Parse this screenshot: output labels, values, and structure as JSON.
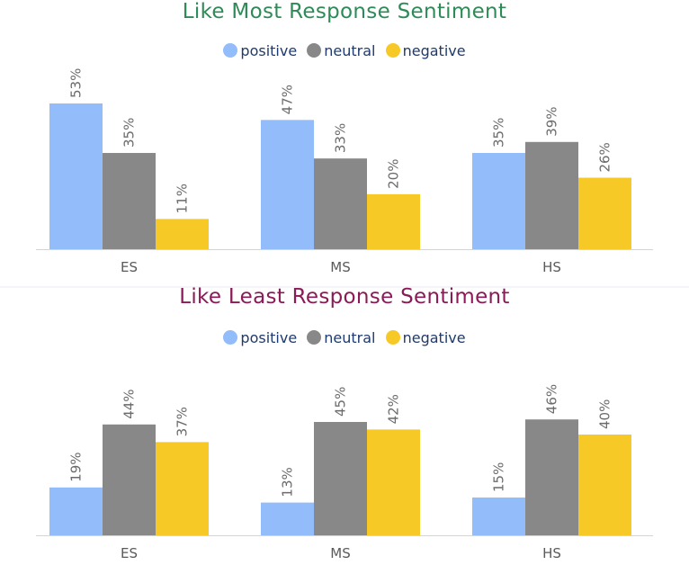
{
  "colors": {
    "positive": "#93bcfa",
    "neutral": "#888888",
    "negative": "#f6c926",
    "title_most": "#2e8b57",
    "title_least": "#8b1a56",
    "axis": "#d4d4d4"
  },
  "legend": {
    "positive": "positive",
    "neutral": "neutral",
    "negative": "negative"
  },
  "chart_data": [
    {
      "type": "bar",
      "title": "Like Most Response Sentiment",
      "categories": [
        "ES",
        "MS",
        "HS"
      ],
      "series": [
        {
          "name": "positive",
          "values": [
            53,
            47,
            35
          ]
        },
        {
          "name": "neutral",
          "values": [
            35,
            33,
            39
          ]
        },
        {
          "name": "negative",
          "values": [
            11,
            20,
            26
          ]
        }
      ],
      "value_format": "{v}%",
      "xlabel": "",
      "ylabel": "",
      "ylim": [
        0,
        53
      ],
      "legend_position": "top-center",
      "grid": false
    },
    {
      "type": "bar",
      "title": "Like Least Response Sentiment",
      "categories": [
        "ES",
        "MS",
        "HS"
      ],
      "series": [
        {
          "name": "positive",
          "values": [
            19,
            13,
            15
          ]
        },
        {
          "name": "neutral",
          "values": [
            44,
            45,
            46
          ]
        },
        {
          "name": "negative",
          "values": [
            37,
            42,
            40
          ]
        }
      ],
      "value_format": "{v}%",
      "xlabel": "",
      "ylabel": "",
      "ylim": [
        0,
        50
      ],
      "legend_position": "top-center",
      "grid": false
    }
  ]
}
